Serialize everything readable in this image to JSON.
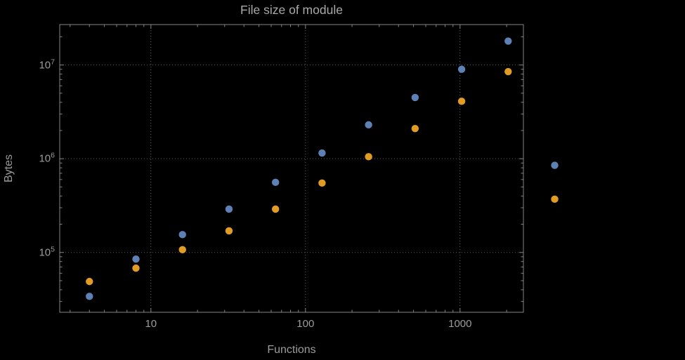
{
  "title": "File size of module",
  "colors": {
    "background": "#000000",
    "frame": "#848484",
    "grid": "#5a5a5a",
    "text": "#9c9c9c",
    "title_text": "#a9a9a9",
    "series_blue": "#5e81b5",
    "series_orange": "#e19c24"
  },
  "axes": {
    "x": {
      "label": "Functions",
      "scale": "log",
      "min": 2.57,
      "max": 2570,
      "major_ticks": [
        10,
        100,
        1000
      ],
      "major_tick_labels": [
        "10",
        "100",
        "1000"
      ]
    },
    "y": {
      "label": "Bytes",
      "scale": "log",
      "min": 23000,
      "max": 27000000,
      "major_ticks": [
        100000,
        1000000,
        10000000
      ],
      "major_tick_labels": [
        "10^5",
        "10^6",
        "10^7"
      ]
    }
  },
  "chart_data": {
    "type": "scatter",
    "title": "File size of module",
    "xlabel": "Functions",
    "ylabel": "Bytes",
    "x_scale": "log",
    "y_scale": "log",
    "grid": "dotted-major",
    "legend_position": "none",
    "xlim": [
      2.57,
      2570
    ],
    "ylim": [
      23000,
      27000000
    ],
    "x": [
      4,
      8,
      16,
      32,
      64,
      128,
      256,
      512,
      1024,
      2048,
      4096
    ],
    "series": [
      {
        "name": "blue",
        "color": "#5e81b5",
        "values": [
          34000,
          85000,
          155000,
          290000,
          560000,
          1150000,
          2300000,
          4500000,
          9000000,
          18000000,
          850000
        ]
      },
      {
        "name": "orange",
        "color": "#e19c24",
        "values": [
          49000,
          68000,
          107000,
          170000,
          290000,
          550000,
          1050000,
          2100000,
          4100000,
          8500000,
          370000
        ]
      }
    ]
  }
}
